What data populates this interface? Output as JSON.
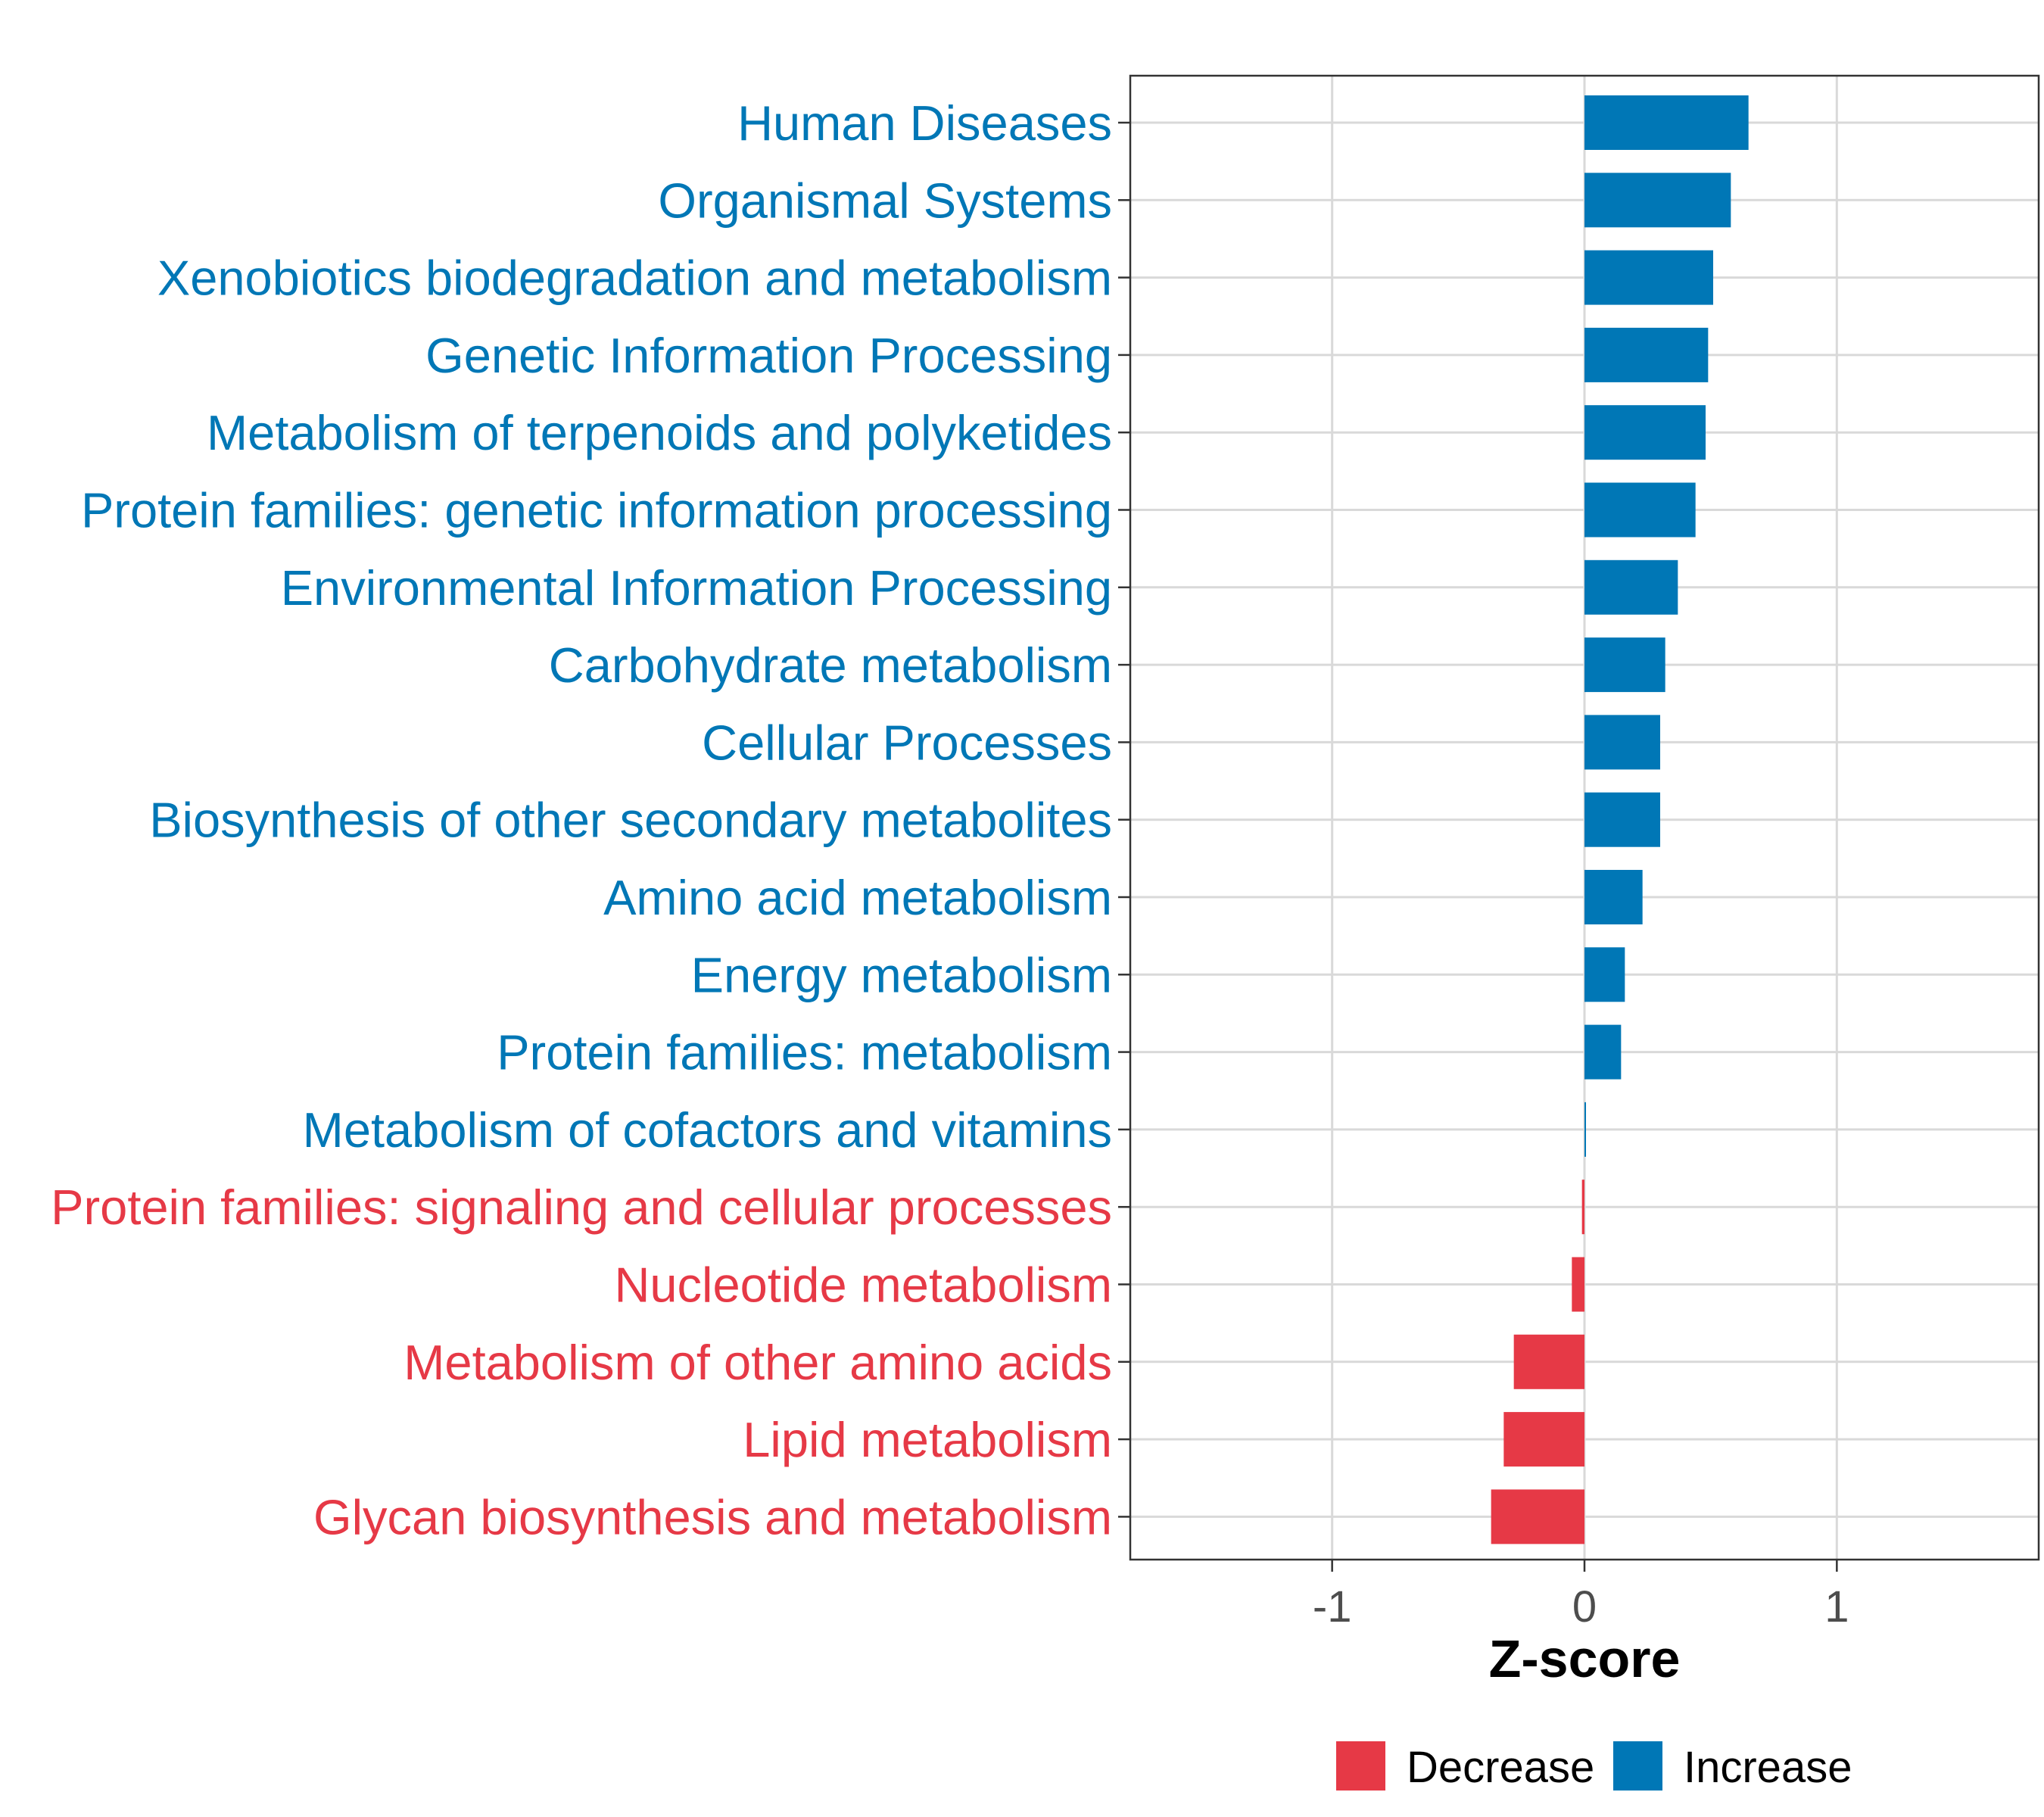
{
  "chart_data": {
    "type": "bar",
    "orientation": "horizontal",
    "categories": [
      "Human Diseases",
      "Organismal Systems",
      "Xenobiotics biodegradation and metabolism",
      "Genetic Information Processing",
      "Metabolism of terpenoids and polyketides",
      "Protein families: genetic information processing",
      "Environmental Information Processing",
      "Carbohydrate metabolism",
      "Cellular Processes",
      "Biosynthesis of other secondary metabolites",
      "Amino acid metabolism",
      "Energy metabolism",
      "Protein families: metabolism",
      "Metabolism of cofactors and vitamins",
      "Protein families: signaling and cellular processes",
      "Nucleotide metabolism",
      "Metabolism of other amino acids",
      "Lipid metabolism",
      "Glycan biosynthesis and metabolism"
    ],
    "values": [
      0.65,
      0.58,
      0.51,
      0.49,
      0.48,
      0.44,
      0.37,
      0.32,
      0.3,
      0.3,
      0.23,
      0.16,
      0.145,
      0.005,
      -0.01,
      -0.05,
      -0.28,
      -0.32,
      -0.37
    ],
    "groups": [
      "Increase",
      "Increase",
      "Increase",
      "Increase",
      "Increase",
      "Increase",
      "Increase",
      "Increase",
      "Increase",
      "Increase",
      "Increase",
      "Increase",
      "Increase",
      "Increase",
      "Decrease",
      "Decrease",
      "Decrease",
      "Decrease",
      "Decrease"
    ],
    "xlabel": "Z-score",
    "ylabel": "",
    "xlim": [
      -1.8,
      1.8
    ],
    "xticks": [
      -1,
      0,
      1
    ],
    "xtick_labels": [
      "-1",
      "0",
      "1"
    ],
    "grid": true,
    "legend": {
      "position": "bottom",
      "entries": [
        {
          "label": "Decrease",
          "color": "#e63946"
        },
        {
          "label": "Increase",
          "color": "#0077b6"
        }
      ]
    }
  },
  "colors": {
    "Increase": "#0077b6",
    "Decrease": "#e63946",
    "grid": "#d9d9d9",
    "panel_border": "#333333"
  }
}
